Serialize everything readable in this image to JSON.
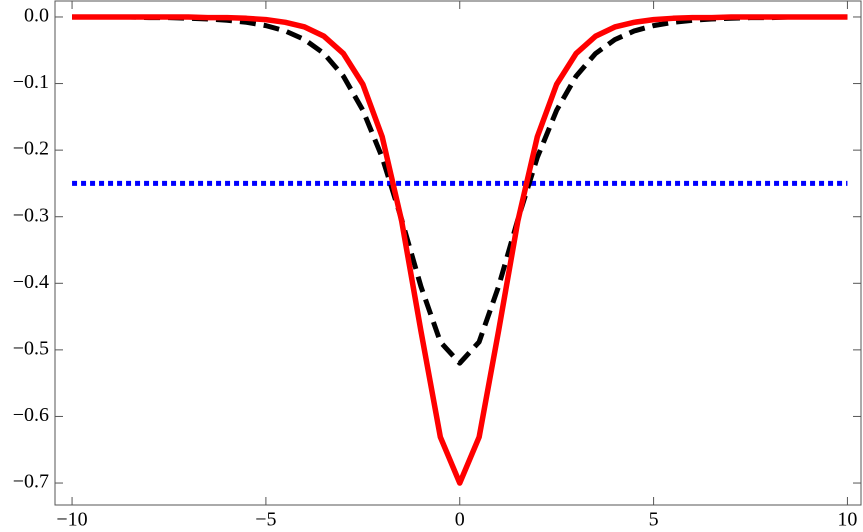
{
  "chart_data": {
    "type": "line",
    "x": [
      -10,
      -9.5,
      -9,
      -8.5,
      -8,
      -7.5,
      -7,
      -6.5,
      -6,
      -5.5,
      -5,
      -4.5,
      -4,
      -3.5,
      -3,
      -2.5,
      -2,
      -1.5,
      -1,
      -0.5,
      0,
      0.5,
      1,
      1.5,
      2,
      2.5,
      3,
      3.5,
      4,
      4.5,
      5,
      5.5,
      6,
      6.5,
      7,
      7.5,
      8,
      8.5,
      9,
      9.5,
      10
    ],
    "series": [
      {
        "color": "#0000ff",
        "style": "dotted",
        "values": [
          -0.25,
          -0.25,
          -0.25,
          -0.25,
          -0.25,
          -0.25,
          -0.25,
          -0.25,
          -0.25,
          -0.25,
          -0.25,
          -0.25,
          -0.25,
          -0.25,
          -0.25,
          -0.25,
          -0.25,
          -0.25,
          -0.25,
          -0.25,
          -0.25,
          -0.25,
          -0.25,
          -0.25,
          -0.25,
          -0.25,
          -0.25,
          -0.25,
          -0.25,
          -0.25,
          -0.25,
          -0.25,
          -0.25,
          -0.25,
          -0.25,
          -0.25,
          -0.25,
          -0.25,
          -0.25,
          -0.25,
          -0.25
        ]
      },
      {
        "color": "#000000",
        "style": "dashed",
        "values": [
          0,
          0,
          0,
          0,
          -0.001,
          -0.001,
          -0.002,
          -0.003,
          -0.005,
          -0.008,
          -0.013,
          -0.021,
          -0.034,
          -0.055,
          -0.089,
          -0.14,
          -0.211,
          -0.304,
          -0.405,
          -0.488,
          -0.52,
          -0.488,
          -0.405,
          -0.304,
          -0.211,
          -0.14,
          -0.089,
          -0.055,
          -0.034,
          -0.021,
          -0.013,
          -0.008,
          -0.005,
          -0.003,
          -0.002,
          -0.001,
          -0.001,
          0,
          0,
          0,
          0
        ]
      },
      {
        "color": "#ff0000",
        "style": "solid",
        "values": [
          0,
          0,
          0,
          0,
          0,
          0,
          0,
          -0.001,
          -0.001,
          -0.002,
          -0.004,
          -0.008,
          -0.015,
          -0.029,
          -0.055,
          -0.101,
          -0.18,
          -0.306,
          -0.472,
          -0.631,
          -0.7,
          -0.631,
          -0.472,
          -0.306,
          -0.18,
          -0.101,
          -0.055,
          -0.029,
          -0.015,
          -0.008,
          -0.004,
          -0.002,
          -0.001,
          -0.001,
          0,
          0,
          0,
          0,
          0,
          0,
          0
        ]
      }
    ],
    "xlim": [
      -10.44,
      10.35
    ],
    "ylim": [
      -0.733,
      0.024
    ],
    "xticks": [
      {
        "value": -10,
        "label": "−10"
      },
      {
        "value": -5,
        "label": "−5"
      },
      {
        "value": 0,
        "label": "0"
      },
      {
        "value": 5,
        "label": "5"
      },
      {
        "value": 10,
        "label": "10"
      }
    ],
    "yticks": [
      {
        "value": 0,
        "label": "0.0"
      },
      {
        "value": -0.1,
        "label": "−0.1"
      },
      {
        "value": -0.2,
        "label": "−0.2"
      },
      {
        "value": -0.3,
        "label": "−0.3"
      },
      {
        "value": -0.4,
        "label": "−0.4"
      },
      {
        "value": -0.5,
        "label": "−0.5"
      },
      {
        "value": -0.6,
        "label": "−0.6"
      },
      {
        "value": -0.7,
        "label": "−0.7"
      }
    ]
  }
}
